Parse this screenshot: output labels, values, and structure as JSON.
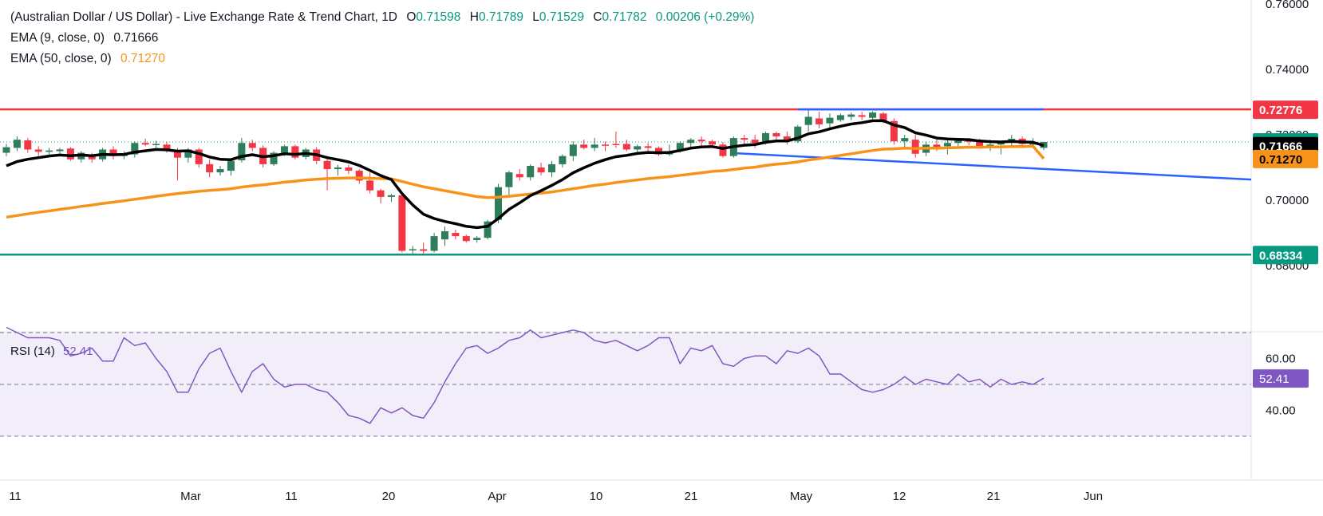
{
  "header": {
    "title": "(Australian Dollar / US Dollar) - Live Exchange Rate & Trend Chart, 1D",
    "open_label": "O",
    "open": "0.71598",
    "high_label": "H",
    "high": "0.71789",
    "low_label": "L",
    "low": "0.71529",
    "close_label": "C",
    "close": "0.71782",
    "change": "0.00206 (+0.29%)"
  },
  "indicators": {
    "ema9": {
      "label": "EMA (9, close, 0)",
      "value": "0.71666",
      "color": "#000000"
    },
    "ema50": {
      "label": "EMA (50, close, 0)",
      "value": "0.71270",
      "color": "#f7931a"
    },
    "rsi": {
      "label": "RSI (14)",
      "value": "52.41",
      "color": "#7e57c2"
    }
  },
  "chart_data": {
    "type": "candlestick",
    "price_axis": {
      "ticks": [
        "0.76000",
        "0.74000",
        "0.72000",
        "0.70000",
        "0.68000"
      ]
    },
    "rsi_axis": {
      "ticks": [
        "60.00",
        "40.00"
      ],
      "bands": [
        70,
        30
      ],
      "mid": 50
    },
    "x_ticks": [
      "11",
      "Mar",
      "11",
      "20",
      "Apr",
      "10",
      "21",
      "May",
      "12",
      "21",
      "Jun"
    ],
    "price_labels": [
      {
        "text": "0.72776",
        "price": 0.72776,
        "bg": "#f23645",
        "fg": "#ffffff"
      },
      {
        "text": "0.71782",
        "price": 0.71782,
        "bg": "#089981",
        "fg": "#ffffff"
      },
      {
        "text": "0.71666",
        "price": 0.71666,
        "bg": "#000000",
        "fg": "#ffffff"
      },
      {
        "text": "0.71270",
        "price": 0.7127,
        "bg": "#f7931a",
        "fg": "#000000"
      },
      {
        "text": "0.68334",
        "price": 0.68334,
        "bg": "#089981",
        "fg": "#ffffff"
      }
    ],
    "rsi_label": {
      "text": "52.41",
      "rsi": 52.41,
      "bg": "#7e57c2",
      "fg": "#ffffff"
    },
    "hlines": [
      {
        "price": 0.72776,
        "color": "#f23645"
      },
      {
        "price": 0.68334,
        "color": "#089981"
      }
    ],
    "candles": [
      [
        0.7145,
        0.7172,
        0.7135,
        0.7162
      ],
      [
        0.716,
        0.7195,
        0.715,
        0.7185
      ],
      [
        0.7183,
        0.719,
        0.7145,
        0.7155
      ],
      [
        0.7155,
        0.7165,
        0.7135,
        0.7148
      ],
      [
        0.7148,
        0.716,
        0.714,
        0.7152
      ],
      [
        0.715,
        0.716,
        0.7138,
        0.7155
      ],
      [
        0.7158,
        0.7162,
        0.712,
        0.7125
      ],
      [
        0.7125,
        0.715,
        0.7115,
        0.7145
      ],
      [
        0.714,
        0.7145,
        0.7115,
        0.7125
      ],
      [
        0.7125,
        0.716,
        0.7118,
        0.7155
      ],
      [
        0.7155,
        0.7165,
        0.7125,
        0.7135
      ],
      [
        0.7135,
        0.715,
        0.7125,
        0.714
      ],
      [
        0.714,
        0.718,
        0.713,
        0.7175
      ],
      [
        0.7175,
        0.7188,
        0.7165,
        0.717
      ],
      [
        0.717,
        0.7182,
        0.716,
        0.7172
      ],
      [
        0.717,
        0.7178,
        0.7145,
        0.715
      ],
      [
        0.7152,
        0.716,
        0.706,
        0.713
      ],
      [
        0.713,
        0.716,
        0.7115,
        0.7155
      ],
      [
        0.7155,
        0.716,
        0.71,
        0.711
      ],
      [
        0.711,
        0.7125,
        0.707,
        0.7085
      ],
      [
        0.7085,
        0.7105,
        0.7075,
        0.7095
      ],
      [
        0.709,
        0.7125,
        0.7075,
        0.712
      ],
      [
        0.7122,
        0.719,
        0.7115,
        0.7175
      ],
      [
        0.7175,
        0.7185,
        0.715,
        0.716
      ],
      [
        0.716,
        0.7168,
        0.71,
        0.711
      ],
      [
        0.711,
        0.715,
        0.7105,
        0.7145
      ],
      [
        0.7145,
        0.717,
        0.7135,
        0.7165
      ],
      [
        0.7165,
        0.717,
        0.7125,
        0.713
      ],
      [
        0.7132,
        0.716,
        0.7125,
        0.7155
      ],
      [
        0.7155,
        0.7162,
        0.711,
        0.712
      ],
      [
        0.712,
        0.7135,
        0.703,
        0.7095
      ],
      [
        0.7095,
        0.7108,
        0.7075,
        0.71
      ],
      [
        0.71,
        0.7108,
        0.708,
        0.709
      ],
      [
        0.709,
        0.7095,
        0.705,
        0.706
      ],
      [
        0.706,
        0.7085,
        0.702,
        0.703
      ],
      [
        0.703,
        0.7035,
        0.699,
        0.701
      ],
      [
        0.701,
        0.702,
        0.6995,
        0.7015
      ],
      [
        0.7015,
        0.702,
        0.684,
        0.6845
      ],
      [
        0.6848,
        0.686,
        0.6835,
        0.685
      ],
      [
        0.685,
        0.687,
        0.6835,
        0.6845
      ],
      [
        0.6845,
        0.69,
        0.684,
        0.689
      ],
      [
        0.688,
        0.692,
        0.686,
        0.6905
      ],
      [
        0.69,
        0.691,
        0.688,
        0.689
      ],
      [
        0.689,
        0.6895,
        0.687,
        0.6875
      ],
      [
        0.6878,
        0.689,
        0.687,
        0.6885
      ],
      [
        0.6885,
        0.694,
        0.688,
        0.6935
      ],
      [
        0.694,
        0.705,
        0.693,
        0.704
      ],
      [
        0.704,
        0.709,
        0.701,
        0.7085
      ],
      [
        0.708,
        0.7095,
        0.706,
        0.707
      ],
      [
        0.707,
        0.711,
        0.706,
        0.7105
      ],
      [
        0.71,
        0.7115,
        0.7075,
        0.7085
      ],
      [
        0.7085,
        0.712,
        0.707,
        0.711
      ],
      [
        0.711,
        0.714,
        0.71,
        0.7135
      ],
      [
        0.7135,
        0.718,
        0.712,
        0.717
      ],
      [
        0.717,
        0.7185,
        0.7155,
        0.716
      ],
      [
        0.716,
        0.719,
        0.715,
        0.717
      ],
      [
        0.717,
        0.718,
        0.715,
        0.7168
      ],
      [
        0.7172,
        0.721,
        0.716,
        0.717
      ],
      [
        0.7172,
        0.7185,
        0.715,
        0.7155
      ],
      [
        0.7155,
        0.717,
        0.7145,
        0.7165
      ],
      [
        0.7165,
        0.7175,
        0.7148,
        0.716
      ],
      [
        0.716,
        0.7165,
        0.7135,
        0.714
      ],
      [
        0.714,
        0.717,
        0.7135,
        0.715
      ],
      [
        0.715,
        0.718,
        0.7145,
        0.7175
      ],
      [
        0.7175,
        0.719,
        0.716,
        0.7185
      ],
      [
        0.7185,
        0.7195,
        0.7165,
        0.718
      ],
      [
        0.718,
        0.7185,
        0.716,
        0.717
      ],
      [
        0.717,
        0.7178,
        0.713,
        0.7135
      ],
      [
        0.7135,
        0.7195,
        0.713,
        0.719
      ],
      [
        0.719,
        0.72,
        0.717,
        0.7185
      ],
      [
        0.7185,
        0.72,
        0.716,
        0.7175
      ],
      [
        0.7175,
        0.721,
        0.717,
        0.7205
      ],
      [
        0.7205,
        0.721,
        0.718,
        0.7195
      ],
      [
        0.7195,
        0.721,
        0.717,
        0.718
      ],
      [
        0.718,
        0.723,
        0.7175,
        0.7225
      ],
      [
        0.723,
        0.7275,
        0.721,
        0.7255
      ],
      [
        0.725,
        0.727,
        0.722,
        0.7232
      ],
      [
        0.7235,
        0.7265,
        0.722,
        0.7252
      ],
      [
        0.7245,
        0.7265,
        0.724,
        0.726
      ],
      [
        0.7255,
        0.7268,
        0.7245,
        0.7262
      ],
      [
        0.726,
        0.727,
        0.7245,
        0.7255
      ],
      [
        0.7252,
        0.7272,
        0.7248,
        0.7268
      ],
      [
        0.7265,
        0.727,
        0.7235,
        0.7242
      ],
      [
        0.7242,
        0.725,
        0.717,
        0.718
      ],
      [
        0.718,
        0.72,
        0.716,
        0.719
      ],
      [
        0.7185,
        0.72,
        0.713,
        0.7142
      ],
      [
        0.7145,
        0.718,
        0.7135,
        0.717
      ],
      [
        0.717,
        0.7185,
        0.715,
        0.7155
      ],
      [
        0.7165,
        0.7185,
        0.714,
        0.7175
      ],
      [
        0.7175,
        0.719,
        0.7165,
        0.7182
      ],
      [
        0.7182,
        0.719,
        0.7168,
        0.718
      ],
      [
        0.718,
        0.7188,
        0.716,
        0.7165
      ],
      [
        0.7165,
        0.7185,
        0.715,
        0.717
      ],
      [
        0.717,
        0.718,
        0.714,
        0.7175
      ],
      [
        0.7175,
        0.72,
        0.7165,
        0.7188
      ],
      [
        0.7188,
        0.7195,
        0.7165,
        0.7172
      ],
      [
        0.717,
        0.719,
        0.716,
        0.7175
      ],
      [
        0.716,
        0.7179,
        0.7153,
        0.7178
      ]
    ],
    "ema9": [
      0.7105,
      0.7118,
      0.7125,
      0.713,
      0.7135,
      0.7138,
      0.7136,
      0.7138,
      0.7136,
      0.714,
      0.7139,
      0.714,
      0.7147,
      0.7151,
      0.7155,
      0.7154,
      0.715,
      0.7151,
      0.7143,
      0.7132,
      0.7125,
      0.7124,
      0.7134,
      0.7139,
      0.7133,
      0.7136,
      0.7142,
      0.714,
      0.7143,
      0.7139,
      0.713,
      0.7124,
      0.7117,
      0.7106,
      0.7091,
      0.7075,
      0.7063,
      0.702,
      0.6985,
      0.6957,
      0.6944,
      0.6935,
      0.6928,
      0.692,
      0.6916,
      0.692,
      0.6944,
      0.6972,
      0.6992,
      0.7014,
      0.7029,
      0.7045,
      0.7063,
      0.7084,
      0.7099,
      0.7113,
      0.7124,
      0.7133,
      0.7137,
      0.7143,
      0.7146,
      0.7145,
      0.7146,
      0.7152,
      0.7159,
      0.7163,
      0.7164,
      0.7158,
      0.7164,
      0.7168,
      0.717,
      0.7177,
      0.7181,
      0.7181,
      0.719,
      0.7203,
      0.7209,
      0.7218,
      0.7226,
      0.7233,
      0.7237,
      0.7243,
      0.7243,
      0.723,
      0.7222,
      0.7206,
      0.7199,
      0.719,
      0.7187,
      0.7186,
      0.7185,
      0.7181,
      0.7179,
      0.7178,
      0.718,
      0.7178,
      0.7177,
      0.7167
    ],
    "ema50": [
      0.6948,
      0.6953,
      0.6958,
      0.6963,
      0.6967,
      0.6972,
      0.6976,
      0.6981,
      0.6985,
      0.699,
      0.6994,
      0.6998,
      0.7003,
      0.7007,
      0.7012,
      0.7016,
      0.702,
      0.7024,
      0.7027,
      0.703,
      0.7032,
      0.7035,
      0.704,
      0.7044,
      0.7047,
      0.7051,
      0.7055,
      0.7058,
      0.7062,
      0.7064,
      0.7066,
      0.7067,
      0.7068,
      0.7068,
      0.7067,
      0.7066,
      0.7065,
      0.7057,
      0.7049,
      0.7041,
      0.7035,
      0.7029,
      0.7023,
      0.7017,
      0.7011,
      0.7008,
      0.7009,
      0.7012,
      0.7015,
      0.7019,
      0.7022,
      0.7025,
      0.703,
      0.7035,
      0.704,
      0.7045,
      0.7049,
      0.7054,
      0.7058,
      0.7062,
      0.7066,
      0.7069,
      0.7072,
      0.7076,
      0.708,
      0.7084,
      0.7088,
      0.709,
      0.7094,
      0.7098,
      0.7101,
      0.7106,
      0.711,
      0.7113,
      0.7117,
      0.7123,
      0.7127,
      0.7132,
      0.7137,
      0.7142,
      0.7147,
      0.7152,
      0.7156,
      0.7157,
      0.7159,
      0.7158,
      0.7159,
      0.7159,
      0.716,
      0.7161,
      0.7162,
      0.7162,
      0.7163,
      0.7163,
      0.7164,
      0.7164,
      0.7165,
      0.7127
    ],
    "rsi": [
      72,
      70,
      68,
      68,
      68,
      67,
      61,
      62,
      64,
      59,
      59,
      68,
      65,
      66,
      60,
      55,
      47,
      47,
      56,
      62,
      64,
      55,
      47,
      55,
      58,
      52,
      49,
      50,
      50,
      48,
      47,
      43,
      38,
      37,
      35,
      41,
      39,
      41,
      38,
      37,
      43,
      51,
      58,
      64,
      65,
      62,
      64,
      67,
      68,
      71,
      68,
      69,
      70,
      71,
      70,
      67,
      66,
      67,
      65,
      63,
      65,
      68,
      68,
      58,
      64,
      63,
      65,
      58,
      57,
      60,
      61,
      61,
      58,
      63,
      62,
      64,
      61,
      54,
      54,
      51,
      48,
      47,
      48,
      50,
      53,
      50,
      52,
      51,
      50,
      54,
      51,
      52,
      49,
      52,
      50,
      51,
      50,
      52.41
    ],
    "trendlines": [
      {
        "from": [
          74,
          0.72776
        ],
        "to": [
          97,
          0.72776
        ],
        "color": "#2962ff"
      },
      {
        "from": [
          68,
          0.7144
        ],
        "to": [
          120,
          0.7063
        ],
        "color": "#2962ff"
      }
    ]
  }
}
